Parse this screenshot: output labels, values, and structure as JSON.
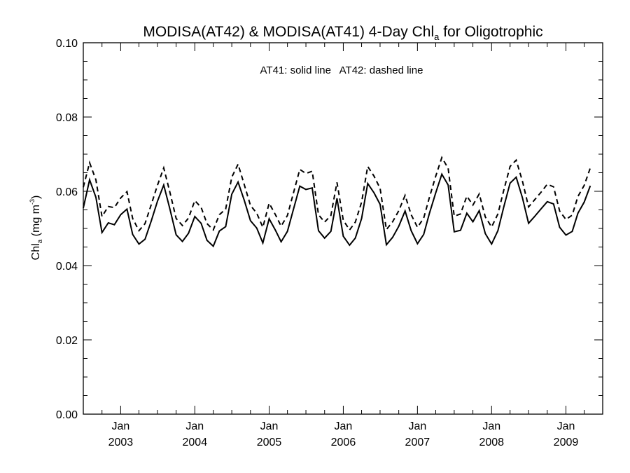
{
  "chart_data": {
    "type": "line",
    "title": "MODISA(AT42) & MODISA(AT41) 4-Day Chl",
    "title_sub": "a",
    "title_end": " for Oligotrophic",
    "ylabel_main": "Chl",
    "ylabel_sub": "a",
    "ylabel_unit": " (mg m",
    "ylabel_sup": "-3",
    "ylabel_close": ")",
    "annotation": "AT41: solid line   AT42: dashed line",
    "ylim": [
      0,
      0.1
    ],
    "yticks": [
      0.0,
      0.02,
      0.04,
      0.06,
      0.08,
      0.1
    ],
    "ytick_labels": [
      "0.00",
      "0.02",
      "0.04",
      "0.06",
      "0.08",
      "0.10"
    ],
    "xlim": [
      "2002-07-01",
      "2009-07-01"
    ],
    "xticks": [
      {
        "date": "2003-01-01",
        "month": "Jan",
        "year": "2003"
      },
      {
        "date": "2004-01-01",
        "month": "Jan",
        "year": "2004"
      },
      {
        "date": "2005-01-01",
        "month": "Jan",
        "year": "2005"
      },
      {
        "date": "2006-01-01",
        "month": "Jan",
        "year": "2006"
      },
      {
        "date": "2007-01-01",
        "month": "Jan",
        "year": "2007"
      },
      {
        "date": "2008-01-01",
        "month": "Jan",
        "year": "2008"
      },
      {
        "date": "2009-01-01",
        "month": "Jan",
        "year": "2009"
      }
    ],
    "grid": false,
    "series": [
      {
        "name": "AT41",
        "style": "solid",
        "color": "#000000",
        "points": [
          [
            "2002-07-01",
            0.0555
          ],
          [
            "2002-08-01",
            0.0631
          ],
          [
            "2002-09-01",
            0.0584
          ],
          [
            "2002-10-01",
            0.0489
          ],
          [
            "2002-11-01",
            0.0515
          ],
          [
            "2002-12-01",
            0.051
          ],
          [
            "2003-01-01",
            0.0537
          ],
          [
            "2003-02-01",
            0.0552
          ],
          [
            "2003-03-01",
            0.0484
          ],
          [
            "2003-04-01",
            0.0458
          ],
          [
            "2003-05-01",
            0.0471
          ],
          [
            "2003-06-01",
            0.0521
          ],
          [
            "2003-07-01",
            0.0573
          ],
          [
            "2003-08-01",
            0.0617
          ],
          [
            "2003-09-01",
            0.0551
          ],
          [
            "2003-10-01",
            0.0483
          ],
          [
            "2003-11-01",
            0.0465
          ],
          [
            "2003-12-01",
            0.0487
          ],
          [
            "2004-01-01",
            0.0532
          ],
          [
            "2004-02-01",
            0.0514
          ],
          [
            "2004-03-01",
            0.0468
          ],
          [
            "2004-04-01",
            0.0452
          ],
          [
            "2004-05-01",
            0.0493
          ],
          [
            "2004-06-01",
            0.0505
          ],
          [
            "2004-07-01",
            0.0592
          ],
          [
            "2004-08-01",
            0.0625
          ],
          [
            "2004-09-01",
            0.0575
          ],
          [
            "2004-10-01",
            0.0521
          ],
          [
            "2004-11-01",
            0.0501
          ],
          [
            "2004-12-01",
            0.0461
          ],
          [
            "2005-01-01",
            0.0526
          ],
          [
            "2005-02-01",
            0.0495
          ],
          [
            "2005-03-01",
            0.0464
          ],
          [
            "2005-04-01",
            0.0492
          ],
          [
            "2005-05-01",
            0.0552
          ],
          [
            "2005-06-01",
            0.0614
          ],
          [
            "2005-07-01",
            0.0605
          ],
          [
            "2005-08-01",
            0.0609
          ],
          [
            "2005-09-01",
            0.0494
          ],
          [
            "2005-10-01",
            0.0474
          ],
          [
            "2005-11-01",
            0.0492
          ],
          [
            "2005-12-01",
            0.0581
          ],
          [
            "2006-01-01",
            0.0479
          ],
          [
            "2006-02-01",
            0.0455
          ],
          [
            "2006-03-01",
            0.0474
          ],
          [
            "2006-04-01",
            0.0527
          ],
          [
            "2006-05-01",
            0.0621
          ],
          [
            "2006-06-01",
            0.0596
          ],
          [
            "2006-07-01",
            0.0565
          ],
          [
            "2006-08-01",
            0.0456
          ],
          [
            "2006-09-01",
            0.0476
          ],
          [
            "2006-10-01",
            0.0506
          ],
          [
            "2006-11-01",
            0.0547
          ],
          [
            "2006-12-01",
            0.0494
          ],
          [
            "2007-01-01",
            0.0459
          ],
          [
            "2007-02-01",
            0.0484
          ],
          [
            "2007-03-01",
            0.0541
          ],
          [
            "2007-04-01",
            0.0596
          ],
          [
            "2007-05-01",
            0.0646
          ],
          [
            "2007-06-01",
            0.0617
          ],
          [
            "2007-07-01",
            0.0491
          ],
          [
            "2007-08-01",
            0.0495
          ],
          [
            "2007-09-01",
            0.0541
          ],
          [
            "2007-10-01",
            0.0518
          ],
          [
            "2007-11-01",
            0.0548
          ],
          [
            "2007-12-01",
            0.0486
          ],
          [
            "2008-01-01",
            0.0458
          ],
          [
            "2008-02-01",
            0.0494
          ],
          [
            "2008-03-01",
            0.0558
          ],
          [
            "2008-04-01",
            0.0622
          ],
          [
            "2008-05-01",
            0.0638
          ],
          [
            "2008-06-01",
            0.0582
          ],
          [
            "2008-07-01",
            0.0514
          ],
          [
            "2008-08-01",
            0.0533
          ],
          [
            "2008-09-01",
            0.0553
          ],
          [
            "2008-10-01",
            0.0572
          ],
          [
            "2008-11-01",
            0.0566
          ],
          [
            "2008-12-01",
            0.0503
          ],
          [
            "2009-01-01",
            0.0482
          ],
          [
            "2009-02-01",
            0.0492
          ],
          [
            "2009-03-01",
            0.0541
          ],
          [
            "2009-04-01",
            0.0571
          ],
          [
            "2009-05-01",
            0.0615
          ]
        ]
      },
      {
        "name": "AT42",
        "style": "dashed",
        "color": "#000000",
        "points": [
          [
            "2002-07-01",
            0.0611
          ],
          [
            "2002-08-01",
            0.0677
          ],
          [
            "2002-09-01",
            0.0631
          ],
          [
            "2002-10-01",
            0.0532
          ],
          [
            "2002-11-01",
            0.0559
          ],
          [
            "2002-12-01",
            0.0556
          ],
          [
            "2003-01-01",
            0.0582
          ],
          [
            "2003-02-01",
            0.0599
          ],
          [
            "2003-03-01",
            0.0527
          ],
          [
            "2003-04-01",
            0.0494
          ],
          [
            "2003-05-01",
            0.0513
          ],
          [
            "2003-06-01",
            0.0565
          ],
          [
            "2003-07-01",
            0.0616
          ],
          [
            "2003-08-01",
            0.0663
          ],
          [
            "2003-09-01",
            0.0596
          ],
          [
            "2003-10-01",
            0.0527
          ],
          [
            "2003-11-01",
            0.0508
          ],
          [
            "2003-12-01",
            0.0528
          ],
          [
            "2004-01-01",
            0.0575
          ],
          [
            "2004-02-01",
            0.0557
          ],
          [
            "2004-03-01",
            0.0513
          ],
          [
            "2004-04-01",
            0.0496
          ],
          [
            "2004-05-01",
            0.0537
          ],
          [
            "2004-06-01",
            0.0552
          ],
          [
            "2004-07-01",
            0.0638
          ],
          [
            "2004-08-01",
            0.0673
          ],
          [
            "2004-09-01",
            0.0617
          ],
          [
            "2004-10-01",
            0.0562
          ],
          [
            "2004-11-01",
            0.0541
          ],
          [
            "2004-12-01",
            0.0503
          ],
          [
            "2005-01-01",
            0.0568
          ],
          [
            "2005-02-01",
            0.0537
          ],
          [
            "2005-03-01",
            0.0506
          ],
          [
            "2005-04-01",
            0.0535
          ],
          [
            "2005-05-01",
            0.0596
          ],
          [
            "2005-06-01",
            0.0659
          ],
          [
            "2005-07-01",
            0.0648
          ],
          [
            "2005-08-01",
            0.0654
          ],
          [
            "2005-09-01",
            0.0537
          ],
          [
            "2005-10-01",
            0.0517
          ],
          [
            "2005-11-01",
            0.0535
          ],
          [
            "2005-12-01",
            0.0624
          ],
          [
            "2006-01-01",
            0.0522
          ],
          [
            "2006-02-01",
            0.0496
          ],
          [
            "2006-03-01",
            0.0517
          ],
          [
            "2006-04-01",
            0.0571
          ],
          [
            "2006-05-01",
            0.0667
          ],
          [
            "2006-06-01",
            0.0641
          ],
          [
            "2006-07-01",
            0.0608
          ],
          [
            "2006-08-01",
            0.0497
          ],
          [
            "2006-09-01",
            0.0518
          ],
          [
            "2006-10-01",
            0.0548
          ],
          [
            "2006-11-01",
            0.0589
          ],
          [
            "2006-12-01",
            0.0537
          ],
          [
            "2007-01-01",
            0.0503
          ],
          [
            "2007-02-01",
            0.0528
          ],
          [
            "2007-03-01",
            0.0584
          ],
          [
            "2007-04-01",
            0.0641
          ],
          [
            "2007-05-01",
            0.0691
          ],
          [
            "2007-06-01",
            0.0662
          ],
          [
            "2007-07-01",
            0.0533
          ],
          [
            "2007-08-01",
            0.0539
          ],
          [
            "2007-09-01",
            0.0587
          ],
          [
            "2007-10-01",
            0.0563
          ],
          [
            "2007-11-01",
            0.0593
          ],
          [
            "2007-12-01",
            0.0531
          ],
          [
            "2008-01-01",
            0.0504
          ],
          [
            "2008-02-01",
            0.0539
          ],
          [
            "2008-03-01",
            0.0603
          ],
          [
            "2008-04-01",
            0.0667
          ],
          [
            "2008-05-01",
            0.0684
          ],
          [
            "2008-06-01",
            0.0627
          ],
          [
            "2008-07-01",
            0.0558
          ],
          [
            "2008-08-01",
            0.0578
          ],
          [
            "2008-09-01",
            0.0598
          ],
          [
            "2008-10-01",
            0.0619
          ],
          [
            "2008-11-01",
            0.0612
          ],
          [
            "2008-12-01",
            0.0547
          ],
          [
            "2009-01-01",
            0.0524
          ],
          [
            "2009-02-01",
            0.0536
          ],
          [
            "2009-03-01",
            0.0586
          ],
          [
            "2009-04-01",
            0.0616
          ],
          [
            "2009-05-01",
            0.0663
          ]
        ]
      }
    ]
  }
}
